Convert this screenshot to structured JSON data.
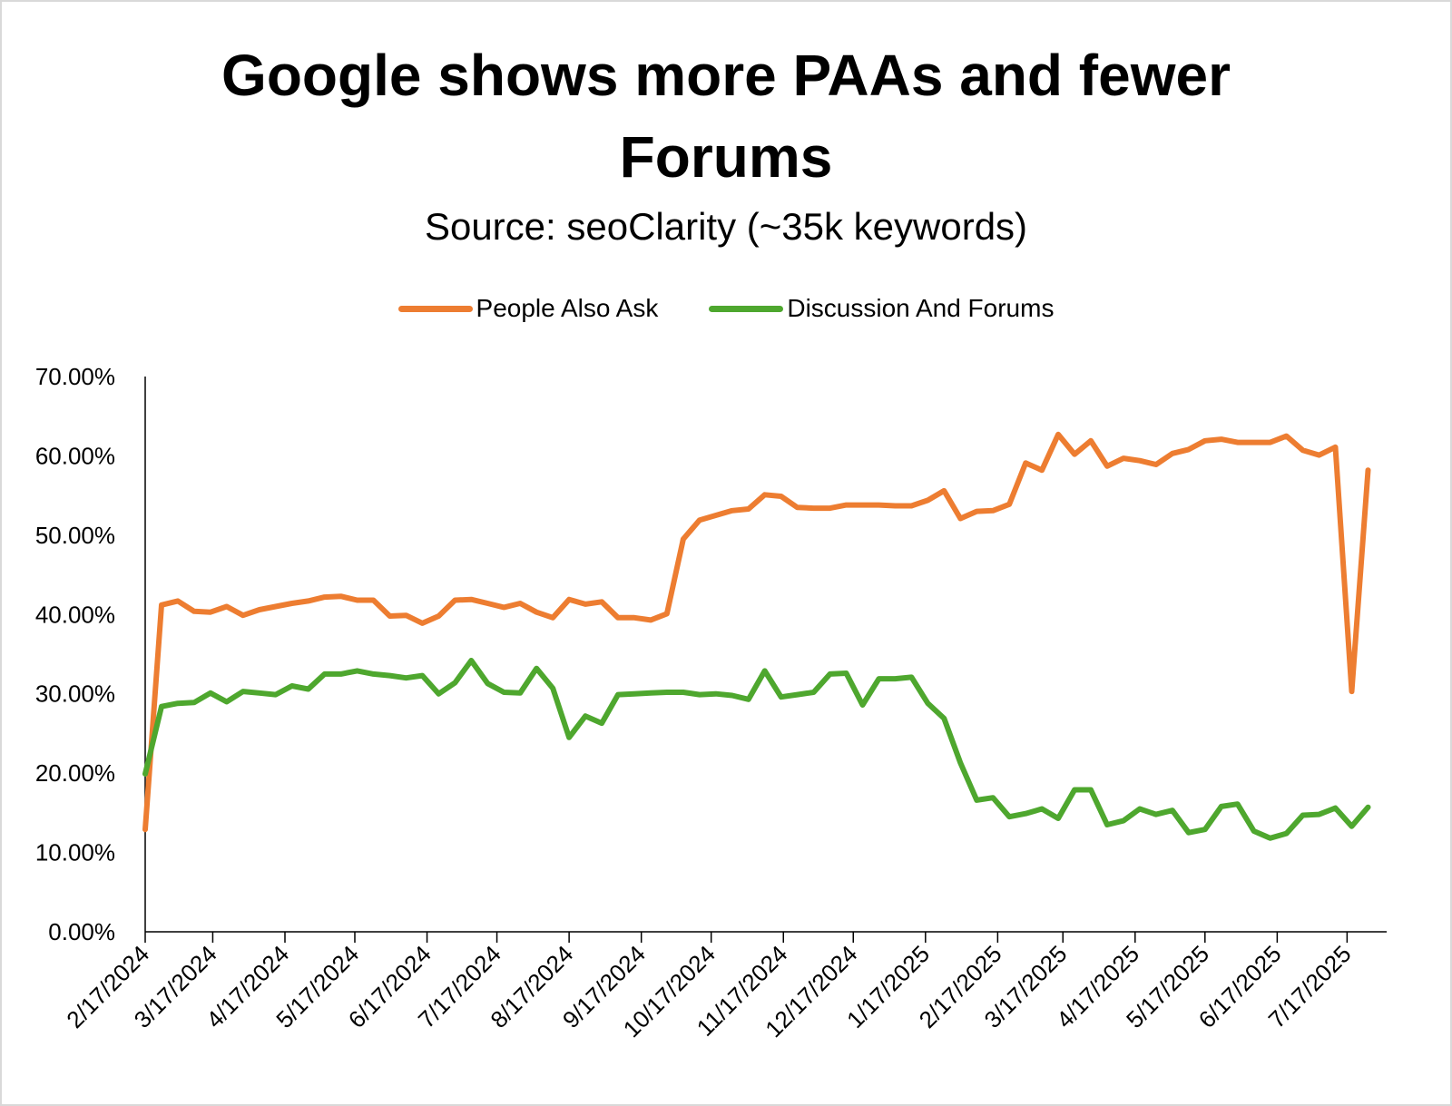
{
  "chart_data": {
    "type": "line",
    "title_lines": [
      "Google shows more PAAs and fewer",
      "Forums"
    ],
    "subtitle": "Source: seoClarity (~35k keywords)",
    "xlabel": "",
    "ylabel": "",
    "ylim": [
      0,
      0.7
    ],
    "yticks": [
      "0.00%",
      "10.00%",
      "20.00%",
      "30.00%",
      "40.00%",
      "50.00%",
      "60.00%",
      "70.00%"
    ],
    "xticks": [
      "2/17/2024",
      "3/17/2024",
      "4/17/2024",
      "5/17/2024",
      "6/17/2024",
      "7/17/2024",
      "8/17/2024",
      "9/17/2024",
      "10/17/2024",
      "11/17/2024",
      "12/17/2024",
      "1/17/2025",
      "2/17/2025",
      "3/17/2025",
      "4/17/2025",
      "5/17/2025",
      "6/17/2025",
      "7/17/2025"
    ],
    "x_start": "2024-02-17",
    "x_end": "2025-08-03",
    "legend_position": "top-center",
    "grid": false,
    "series": [
      {
        "name": "People Also Ask",
        "color": "#ed7d31",
        "points": [
          [
            "2024-02-17",
            0.129
          ],
          [
            "2024-02-24",
            0.412
          ],
          [
            "2024-03-02",
            0.417
          ],
          [
            "2024-03-09",
            0.404
          ],
          [
            "2024-03-16",
            0.403
          ],
          [
            "2024-03-23",
            0.41
          ],
          [
            "2024-03-30",
            0.399
          ],
          [
            "2024-04-06",
            0.406
          ],
          [
            "2024-04-13",
            0.41
          ],
          [
            "2024-04-20",
            0.414
          ],
          [
            "2024-04-27",
            0.417
          ],
          [
            "2024-05-04",
            0.422
          ],
          [
            "2024-05-11",
            0.423
          ],
          [
            "2024-05-18",
            0.418
          ],
          [
            "2024-05-25",
            0.418
          ],
          [
            "2024-06-01",
            0.398
          ],
          [
            "2024-06-08",
            0.399
          ],
          [
            "2024-06-15",
            0.389
          ],
          [
            "2024-06-22",
            0.398
          ],
          [
            "2024-06-29",
            0.418
          ],
          [
            "2024-07-06",
            0.419
          ],
          [
            "2024-07-13",
            0.414
          ],
          [
            "2024-07-20",
            0.409
          ],
          [
            "2024-07-27",
            0.414
          ],
          [
            "2024-08-03",
            0.403
          ],
          [
            "2024-08-10",
            0.396
          ],
          [
            "2024-08-17",
            0.419
          ],
          [
            "2024-08-24",
            0.413
          ],
          [
            "2024-08-31",
            0.416
          ],
          [
            "2024-09-07",
            0.396
          ],
          [
            "2024-09-14",
            0.396
          ],
          [
            "2024-09-21",
            0.393
          ],
          [
            "2024-09-28",
            0.401
          ],
          [
            "2024-10-05",
            0.495
          ],
          [
            "2024-10-12",
            0.519
          ],
          [
            "2024-10-19",
            0.525
          ],
          [
            "2024-10-26",
            0.531
          ],
          [
            "2024-11-02",
            0.533
          ],
          [
            "2024-11-09",
            0.551
          ],
          [
            "2024-11-16",
            0.549
          ],
          [
            "2024-11-23",
            0.535
          ],
          [
            "2024-11-30",
            0.534
          ],
          [
            "2024-12-07",
            0.534
          ],
          [
            "2024-12-14",
            0.538
          ],
          [
            "2024-12-21",
            0.538
          ],
          [
            "2024-12-28",
            0.538
          ],
          [
            "2025-01-04",
            0.537
          ],
          [
            "2025-01-11",
            0.537
          ],
          [
            "2025-01-18",
            0.544
          ],
          [
            "2025-01-25",
            0.556
          ],
          [
            "2025-02-01",
            0.521
          ],
          [
            "2025-02-08",
            0.53
          ],
          [
            "2025-02-15",
            0.531
          ],
          [
            "2025-02-22",
            0.539
          ],
          [
            "2025-03-01",
            0.591
          ],
          [
            "2025-03-08",
            0.582
          ],
          [
            "2025-03-15",
            0.627
          ],
          [
            "2025-03-22",
            0.602
          ],
          [
            "2025-03-29",
            0.619
          ],
          [
            "2025-04-05",
            0.587
          ],
          [
            "2025-04-12",
            0.597
          ],
          [
            "2025-04-19",
            0.594
          ],
          [
            "2025-04-26",
            0.589
          ],
          [
            "2025-05-03",
            0.603
          ],
          [
            "2025-05-10",
            0.608
          ],
          [
            "2025-05-17",
            0.619
          ],
          [
            "2025-05-24",
            0.621
          ],
          [
            "2025-05-31",
            0.617
          ],
          [
            "2025-06-07",
            0.617
          ],
          [
            "2025-06-14",
            0.617
          ],
          [
            "2025-06-21",
            0.625
          ],
          [
            "2025-06-28",
            0.607
          ],
          [
            "2025-07-05",
            0.601
          ],
          [
            "2025-07-12",
            0.611
          ],
          [
            "2025-07-19",
            0.303
          ],
          [
            "2025-07-26",
            0.582
          ]
        ]
      },
      {
        "name": "Discussion And Forums",
        "color": "#4ea72e",
        "points": [
          [
            "2024-02-17",
            0.199
          ],
          [
            "2024-02-24",
            0.284
          ],
          [
            "2024-03-02",
            0.288
          ],
          [
            "2024-03-09",
            0.289
          ],
          [
            "2024-03-16",
            0.301
          ],
          [
            "2024-03-23",
            0.29
          ],
          [
            "2024-03-30",
            0.303
          ],
          [
            "2024-04-06",
            0.301
          ],
          [
            "2024-04-13",
            0.299
          ],
          [
            "2024-04-20",
            0.31
          ],
          [
            "2024-04-27",
            0.306
          ],
          [
            "2024-05-04",
            0.325
          ],
          [
            "2024-05-11",
            0.325
          ],
          [
            "2024-05-18",
            0.329
          ],
          [
            "2024-05-25",
            0.325
          ],
          [
            "2024-06-01",
            0.323
          ],
          [
            "2024-06-08",
            0.32
          ],
          [
            "2024-06-15",
            0.323
          ],
          [
            "2024-06-22",
            0.3
          ],
          [
            "2024-06-29",
            0.314
          ],
          [
            "2024-07-06",
            0.342
          ],
          [
            "2024-07-13",
            0.313
          ],
          [
            "2024-07-20",
            0.302
          ],
          [
            "2024-07-27",
            0.301
          ],
          [
            "2024-08-03",
            0.332
          ],
          [
            "2024-08-10",
            0.307
          ],
          [
            "2024-08-17",
            0.245
          ],
          [
            "2024-08-24",
            0.272
          ],
          [
            "2024-08-31",
            0.263
          ],
          [
            "2024-09-07",
            0.299
          ],
          [
            "2024-09-14",
            0.3
          ],
          [
            "2024-09-21",
            0.301
          ],
          [
            "2024-09-28",
            0.302
          ],
          [
            "2024-10-05",
            0.302
          ],
          [
            "2024-10-12",
            0.299
          ],
          [
            "2024-10-19",
            0.3
          ],
          [
            "2024-10-26",
            0.298
          ],
          [
            "2024-11-02",
            0.293
          ],
          [
            "2024-11-09",
            0.329
          ],
          [
            "2024-11-16",
            0.296
          ],
          [
            "2024-11-23",
            0.299
          ],
          [
            "2024-11-30",
            0.302
          ],
          [
            "2024-12-07",
            0.325
          ],
          [
            "2024-12-14",
            0.326
          ],
          [
            "2024-12-21",
            0.286
          ],
          [
            "2024-12-28",
            0.319
          ],
          [
            "2025-01-04",
            0.319
          ],
          [
            "2025-01-11",
            0.321
          ],
          [
            "2025-01-18",
            0.288
          ],
          [
            "2025-01-25",
            0.269
          ],
          [
            "2025-02-01",
            0.213
          ],
          [
            "2025-02-08",
            0.166
          ],
          [
            "2025-02-15",
            0.169
          ],
          [
            "2025-02-22",
            0.145
          ],
          [
            "2025-03-01",
            0.149
          ],
          [
            "2025-03-08",
            0.155
          ],
          [
            "2025-03-15",
            0.143
          ],
          [
            "2025-03-22",
            0.179
          ],
          [
            "2025-03-29",
            0.179
          ],
          [
            "2025-04-05",
            0.135
          ],
          [
            "2025-04-12",
            0.14
          ],
          [
            "2025-04-19",
            0.155
          ],
          [
            "2025-04-26",
            0.148
          ],
          [
            "2025-05-03",
            0.153
          ],
          [
            "2025-05-10",
            0.125
          ],
          [
            "2025-05-17",
            0.129
          ],
          [
            "2025-05-24",
            0.158
          ],
          [
            "2025-05-31",
            0.161
          ],
          [
            "2025-06-07",
            0.127
          ],
          [
            "2025-06-14",
            0.118
          ],
          [
            "2025-06-21",
            0.124
          ],
          [
            "2025-06-28",
            0.147
          ],
          [
            "2025-07-05",
            0.148
          ],
          [
            "2025-07-12",
            0.156
          ],
          [
            "2025-07-19",
            0.133
          ],
          [
            "2025-07-26",
            0.157
          ]
        ]
      }
    ]
  }
}
